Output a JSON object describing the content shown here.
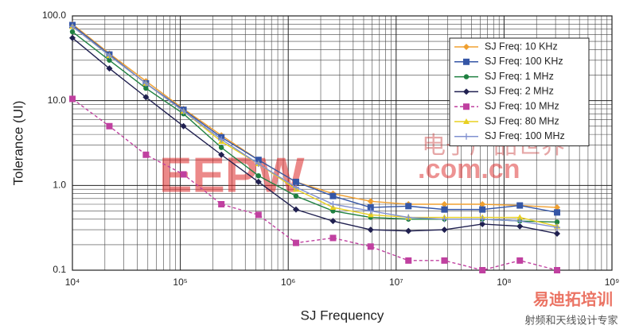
{
  "chart_data": {
    "type": "line",
    "y_label": "Tolerance (UI)",
    "x_label": "SJ Frequency",
    "log_x": true,
    "log_y": true,
    "grid": true,
    "minor_grid": true,
    "legend": "upper right",
    "xlim": [
      10000,
      1000000000
    ],
    "xticks": [
      {
        "value": 10000,
        "label": "10⁴"
      },
      {
        "value": 100000,
        "label": "10⁵"
      },
      {
        "value": 1000000,
        "label": "10⁶"
      },
      {
        "value": 10000000,
        "label": "10⁷"
      },
      {
        "value": 100000000,
        "label": "10⁸"
      },
      {
        "value": 1000000000,
        "label": "10⁹"
      }
    ],
    "ylim": [
      0.1,
      100
    ],
    "yticks": [
      0.1,
      {
        "value": 1,
        "label": "1.0"
      },
      {
        "value": 10,
        "label": "10.0"
      },
      {
        "value": 100,
        "label": "100.0"
      }
    ],
    "x": [
      10000,
      22000,
      48000,
      107000,
      240000,
      530000,
      1180000,
      2600000,
      5800000,
      13000000,
      28000000,
      63000000,
      140000000,
      310000000
    ],
    "series": [
      {
        "name": "SJ Freq: 10 KHz",
        "color": "#f0a030",
        "marker": "diamond",
        "values": [
          80,
          36,
          17,
          8,
          3.9,
          2.0,
          1.1,
          0.8,
          0.65,
          0.6,
          0.6,
          0.6,
          0.58,
          0.55
        ]
      },
      {
        "name": "SJ Freq: 100 KHz",
        "color": "#3556a6",
        "marker": "square",
        "values": [
          78,
          35,
          16,
          7.8,
          3.7,
          2.0,
          1.1,
          0.75,
          0.55,
          0.57,
          0.52,
          0.52,
          0.58,
          0.48
        ]
      },
      {
        "name": "SJ Freq: 1 MHz",
        "color": "#1f8040",
        "marker": "circle",
        "values": [
          65,
          30,
          14,
          7,
          2.8,
          1.3,
          0.75,
          0.5,
          0.42,
          0.4,
          0.4,
          0.4,
          0.38,
          0.37
        ]
      },
      {
        "name": "SJ Freq: 2 MHz",
        "color": "#202050",
        "marker": "diamond",
        "values": [
          55,
          24,
          11,
          5,
          2.3,
          1.1,
          0.52,
          0.38,
          0.3,
          0.29,
          0.3,
          0.35,
          0.33,
          0.27
        ]
      },
      {
        "name": "SJ Freq: 10 MHz",
        "color": "#c040a0",
        "marker": "square",
        "dashed": true,
        "values": [
          10.5,
          5,
          2.3,
          1.35,
          0.6,
          0.45,
          0.21,
          0.24,
          0.19,
          0.13,
          0.13,
          0.1,
          0.13,
          0.1
        ]
      },
      {
        "name": "SJ Freq: 80 MHz",
        "color": "#e8d020",
        "marker": "triangle",
        "values": [
          75,
          34,
          16,
          7.5,
          3.3,
          1.8,
          0.9,
          0.55,
          0.45,
          0.42,
          0.42,
          0.42,
          0.42,
          0.33
        ]
      },
      {
        "name": "SJ Freq: 100 MHz",
        "color": "#8090d0",
        "marker": "plus",
        "values": [
          75,
          34,
          16,
          7.5,
          3.5,
          1.8,
          0.95,
          0.6,
          0.5,
          0.42,
          0.4,
          0.4,
          0.38,
          0.32
        ]
      }
    ],
    "watermarks": [
      "EEPW",
      "电子产品世界",
      ".com.cn",
      "易迪拓培训",
      "射频和天线设计专家"
    ]
  }
}
